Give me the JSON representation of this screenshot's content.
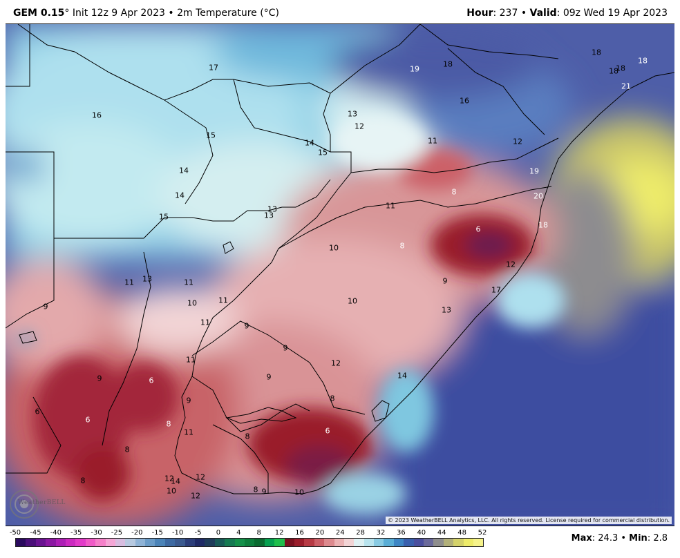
{
  "header": {
    "model": "GEM 0.15",
    "init": "° Init 12z 9 Apr 2023 • 2m Temperature (°C)",
    "hour_label": "Hour",
    "hour_value": ": 237 • ",
    "valid_label": "Valid",
    "valid_value": ": 09z Wed 19 Apr 2023"
  },
  "map": {
    "labels": [
      {
        "t": "17",
        "c": "dark"
      },
      {
        "t": "16",
        "c": "dark"
      },
      {
        "t": "15",
        "c": "dark"
      },
      {
        "t": "14",
        "c": "dark"
      },
      {
        "t": "14",
        "c": "dark"
      },
      {
        "t": "15",
        "c": "dark"
      },
      {
        "t": "13",
        "c": "dark"
      },
      {
        "t": "13",
        "c": "dark"
      },
      {
        "t": "14",
        "c": "dark"
      },
      {
        "t": "15",
        "c": "dark"
      },
      {
        "t": "13",
        "c": "dark"
      },
      {
        "t": "12",
        "c": "dark"
      },
      {
        "t": "19",
        "c": "light"
      },
      {
        "t": "18",
        "c": "dark"
      },
      {
        "t": "16",
        "c": "dark"
      },
      {
        "t": "18",
        "c": "dark"
      },
      {
        "t": "18",
        "c": "dark"
      },
      {
        "t": "18",
        "c": "dark"
      },
      {
        "t": "18",
        "c": "light"
      },
      {
        "t": "21",
        "c": "light"
      },
      {
        "t": "11",
        "c": "dark"
      },
      {
        "t": "12",
        "c": "dark"
      },
      {
        "t": "19",
        "c": "light"
      },
      {
        "t": "20",
        "c": "light"
      },
      {
        "t": "18",
        "c": "light"
      },
      {
        "t": "8",
        "c": "light"
      },
      {
        "t": "11",
        "c": "dark"
      },
      {
        "t": "6",
        "c": "light"
      },
      {
        "t": "10",
        "c": "dark"
      },
      {
        "t": "8",
        "c": "light"
      },
      {
        "t": "12",
        "c": "dark"
      },
      {
        "t": "9",
        "c": "dark"
      },
      {
        "t": "17",
        "c": "dark"
      },
      {
        "t": "11",
        "c": "dark"
      },
      {
        "t": "13",
        "c": "dark"
      },
      {
        "t": "11",
        "c": "dark"
      },
      {
        "t": "10",
        "c": "dark"
      },
      {
        "t": "11",
        "c": "dark"
      },
      {
        "t": "10",
        "c": "dark"
      },
      {
        "t": "13",
        "c": "dark"
      },
      {
        "t": "9",
        "c": "dark"
      },
      {
        "t": "11",
        "c": "dark"
      },
      {
        "t": "9",
        "c": "dark"
      },
      {
        "t": "9",
        "c": "dark"
      },
      {
        "t": "12",
        "c": "dark"
      },
      {
        "t": "14",
        "c": "dark"
      },
      {
        "t": "11",
        "c": "dark"
      },
      {
        "t": "9",
        "c": "dark"
      },
      {
        "t": "6",
        "c": "light"
      },
      {
        "t": "9",
        "c": "dark"
      },
      {
        "t": "9",
        "c": "dark"
      },
      {
        "t": "8",
        "c": "dark"
      },
      {
        "t": "6",
        "c": "dark"
      },
      {
        "t": "6",
        "c": "light"
      },
      {
        "t": "8",
        "c": "light"
      },
      {
        "t": "11",
        "c": "dark"
      },
      {
        "t": "8",
        "c": "dark"
      },
      {
        "t": "6",
        "c": "light"
      },
      {
        "t": "8",
        "c": "dark"
      },
      {
        "t": "8",
        "c": "dark"
      },
      {
        "t": "12",
        "c": "dark"
      },
      {
        "t": "14",
        "c": "dark"
      },
      {
        "t": "12",
        "c": "dark"
      },
      {
        "t": "10",
        "c": "dark"
      },
      {
        "t": "12",
        "c": "dark"
      },
      {
        "t": "8",
        "c": "dark"
      },
      {
        "t": "9",
        "c": "dark"
      },
      {
        "t": "10",
        "c": "dark"
      }
    ],
    "copyright": "© 2023 WeatherBELL Analytics, LLC. All rights reserved. License required for commercial distribution.",
    "logo_text": "WeatherBELL"
  },
  "legend": {
    "ticks": [
      "-50",
      "-45",
      "-40",
      "-35",
      "-30",
      "-25",
      "-20",
      "-15",
      "-10",
      "-5",
      "0",
      "4",
      "8",
      "12",
      "16",
      "20",
      "24",
      "28",
      "32",
      "36",
      "40",
      "44",
      "48",
      "52"
    ],
    "colors": [
      "#2a0a5e",
      "#4b0f7a",
      "#6a1391",
      "#8c18a3",
      "#ad1fb5",
      "#cc2ac0",
      "#e23bc8",
      "#f05bc7",
      "#f580c9",
      "#f5a6d6",
      "#d8bde0",
      "#b7c9e0",
      "#8fb3d6",
      "#6b9cc8",
      "#4c84b8",
      "#3e6aa2",
      "#3b5a8f",
      "#2c3e7a",
      "#1f2a66",
      "#1f3c5a",
      "#195a57",
      "#167a52",
      "#15914a",
      "#0e7f3d",
      "#0a6a30",
      "#06a050",
      "#1fbf4c",
      "#7a1120",
      "#9a1d2b",
      "#b73a44",
      "#cc6068",
      "#dd8a8e",
      "#ebb3b4",
      "#f2d4d5",
      "#dff1f3",
      "#b9e4ee",
      "#89cbe3",
      "#5aaed6",
      "#3e86c4",
      "#3a60ad",
      "#4b4f9e",
      "#6b6a9b",
      "#8f8e8d",
      "#b2b07a",
      "#d4d26a",
      "#eeec6a",
      "#f6f38a"
    ],
    "max_label": "Max",
    "max_value": ": 24.3 • ",
    "min_label": "Min",
    "min_value": ": 2.8"
  }
}
